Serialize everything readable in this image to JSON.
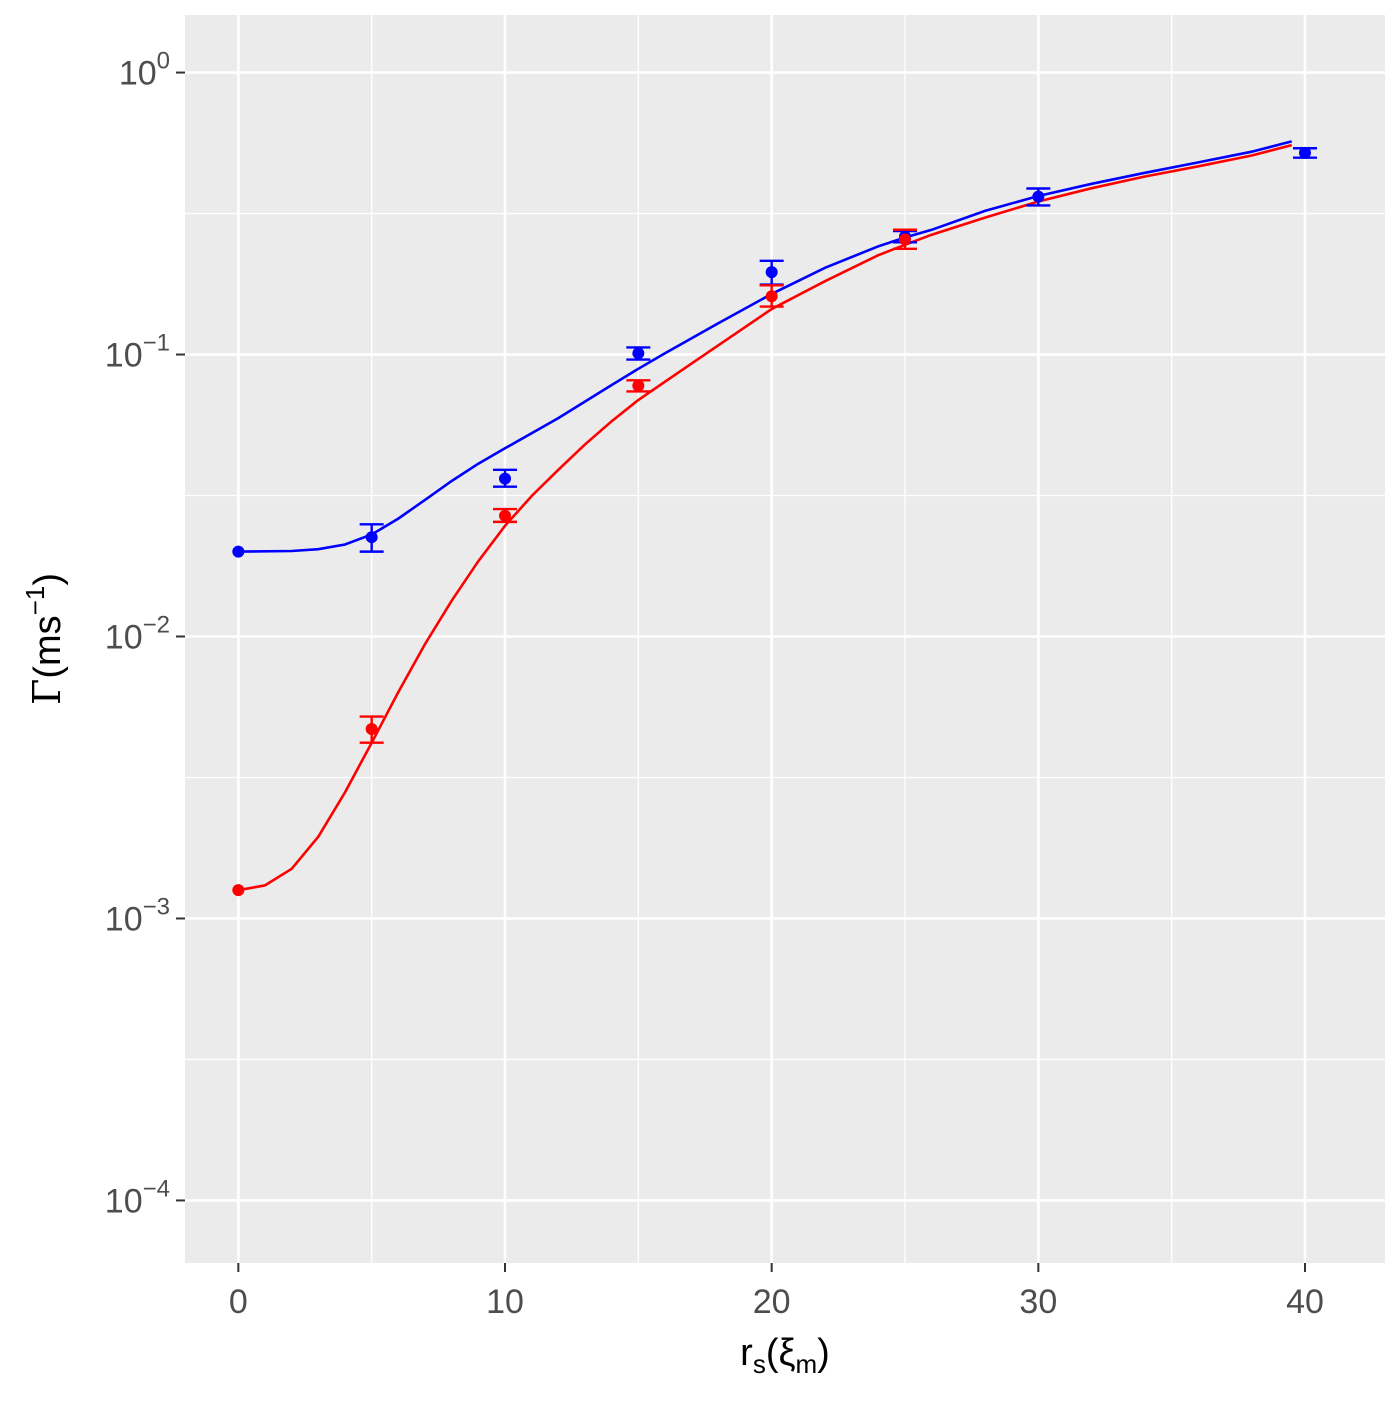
{
  "chart_data": {
    "type": "scatter",
    "title": "",
    "xlabel": {
      "base": "r",
      "sub": "s",
      "open": "(",
      "symbol": "ξ",
      "symbol_sub": "m",
      "close": ")"
    },
    "ylabel": {
      "symbol": "Γ",
      "open": "(",
      "unit": "ms",
      "sup": "−1",
      "close": ")"
    },
    "x_scale": "linear",
    "y_scale": "log10",
    "xlim": [
      -2,
      43
    ],
    "ylim": [
      6e-05,
      1.6
    ],
    "x_ticks": [
      0,
      10,
      20,
      30,
      40
    ],
    "x_tick_labels": [
      "0",
      "10",
      "20",
      "30",
      "40"
    ],
    "y_ticks": [
      {
        "value": 1,
        "base": "10",
        "exp": "0"
      },
      {
        "value": 0.1,
        "base": "10",
        "exp": "−1"
      },
      {
        "value": 0.01,
        "base": "10",
        "exp": "−2"
      },
      {
        "value": 0.001,
        "base": "10",
        "exp": "−3"
      },
      {
        "value": 0.0001,
        "base": "10",
        "exp": "−4"
      }
    ],
    "grid": true,
    "legend": "none",
    "background_color": "#ebebeb",
    "grid_color": "#ffffff",
    "series": [
      {
        "color": "#0000ff",
        "points": [
          {
            "x": 0,
            "y": 0.02,
            "ymin": null,
            "ymax": null
          },
          {
            "x": 5,
            "y": 0.0225,
            "ymin": 0.02,
            "ymax": 0.025
          },
          {
            "x": 10,
            "y": 0.0363,
            "ymin": 0.034,
            "ymax": 0.039
          },
          {
            "x": 15,
            "y": 0.101,
            "ymin": 0.096,
            "ymax": 0.106
          },
          {
            "x": 20,
            "y": 0.196,
            "ymin": 0.177,
            "ymax": 0.215
          },
          {
            "x": 25,
            "y": 0.262,
            "ymin": 0.25,
            "ymax": 0.274
          },
          {
            "x": 30,
            "y": 0.363,
            "ymin": 0.338,
            "ymax": 0.388
          },
          {
            "x": 40,
            "y": 0.519,
            "ymin": 0.499,
            "ymax": 0.539
          }
        ],
        "fit_curve": [
          [
            0,
            0.02
          ],
          [
            2,
            0.0201
          ],
          [
            3,
            0.0204
          ],
          [
            4,
            0.0212
          ],
          [
            5,
            0.023
          ],
          [
            6,
            0.0262
          ],
          [
            7,
            0.0305
          ],
          [
            8,
            0.0356
          ],
          [
            9,
            0.041
          ],
          [
            10,
            0.0465
          ],
          [
            12,
            0.0595
          ],
          [
            14,
            0.078
          ],
          [
            15,
            0.089
          ],
          [
            16,
            0.101
          ],
          [
            18,
            0.129
          ],
          [
            20,
            0.164
          ],
          [
            22,
            0.203
          ],
          [
            24,
            0.242
          ],
          [
            25,
            0.26
          ],
          [
            26,
            0.277
          ],
          [
            28,
            0.323
          ],
          [
            30,
            0.365
          ],
          [
            32,
            0.403
          ],
          [
            34,
            0.441
          ],
          [
            36,
            0.48
          ],
          [
            38,
            0.524
          ],
          [
            39.5,
            0.57
          ]
        ]
      },
      {
        "color": "#ff0000",
        "points": [
          {
            "x": 0,
            "y": 0.00126,
            "ymin": null,
            "ymax": null
          },
          {
            "x": 5,
            "y": 0.0047,
            "ymin": 0.0042,
            "ymax": 0.0052
          },
          {
            "x": 10,
            "y": 0.0268,
            "ymin": 0.0255,
            "ymax": 0.0283
          },
          {
            "x": 15,
            "y": 0.0775,
            "ymin": 0.074,
            "ymax": 0.081
          },
          {
            "x": 20,
            "y": 0.161,
            "ymin": 0.148,
            "ymax": 0.176
          },
          {
            "x": 25,
            "y": 0.256,
            "ymin": 0.237,
            "ymax": 0.277
          }
        ],
        "fit_curve": [
          [
            0,
            0.00126
          ],
          [
            1,
            0.00131
          ],
          [
            2,
            0.0015
          ],
          [
            3,
            0.00195
          ],
          [
            4,
            0.0028
          ],
          [
            5,
            0.0042
          ],
          [
            6,
            0.00635
          ],
          [
            7,
            0.0094
          ],
          [
            8,
            0.0134
          ],
          [
            9,
            0.0185
          ],
          [
            10,
            0.0247
          ],
          [
            11,
            0.0315
          ],
          [
            12,
            0.039
          ],
          [
            13,
            0.048
          ],
          [
            14,
            0.058
          ],
          [
            15,
            0.069
          ],
          [
            17,
            0.093
          ],
          [
            19,
            0.125
          ],
          [
            20,
            0.145
          ],
          [
            22,
            0.182
          ],
          [
            24,
            0.225
          ],
          [
            25,
            0.245
          ],
          [
            26,
            0.266
          ],
          [
            28,
            0.306
          ],
          [
            30,
            0.349
          ],
          [
            32,
            0.389
          ],
          [
            34,
            0.428
          ],
          [
            36,
            0.465
          ],
          [
            38,
            0.508
          ],
          [
            39.5,
            0.553
          ]
        ]
      }
    ]
  }
}
